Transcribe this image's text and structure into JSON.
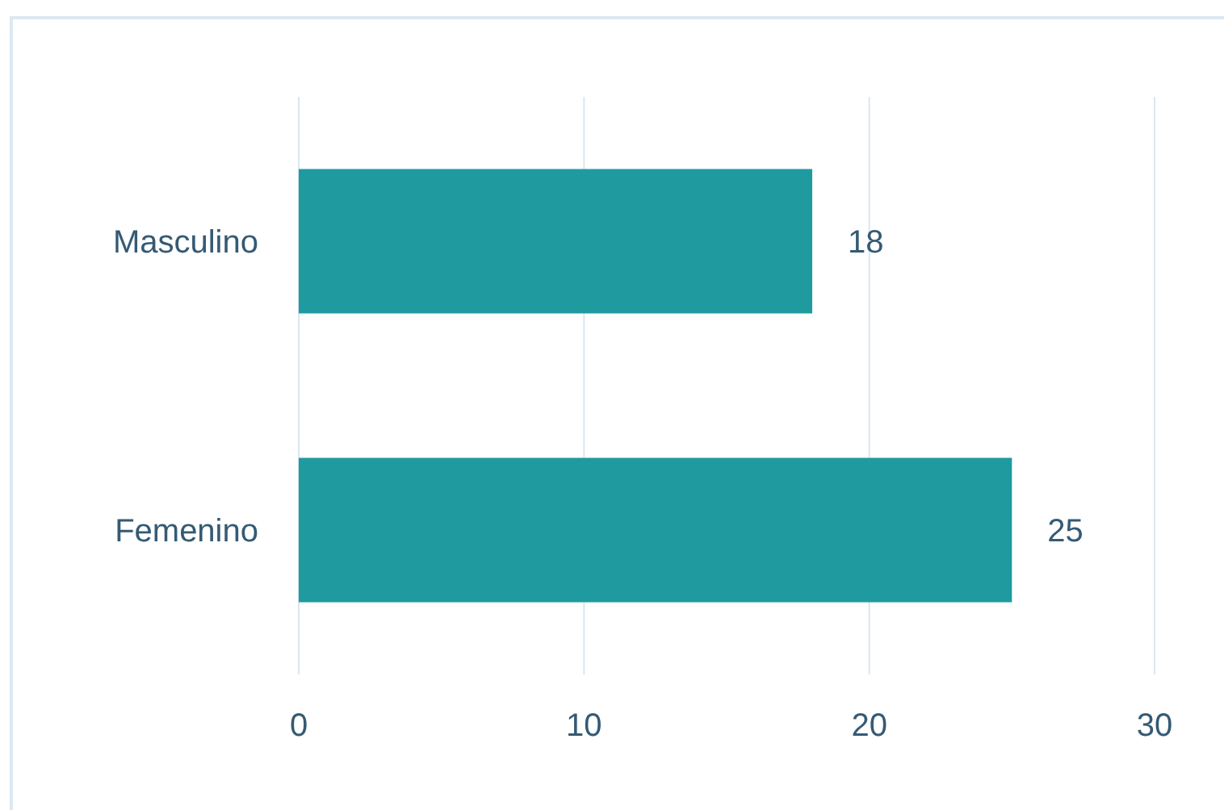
{
  "chart_data": {
    "type": "bar",
    "orientation": "horizontal",
    "categories": [
      "Masculino",
      "Femenino"
    ],
    "values": [
      18,
      25
    ],
    "color": "#1f9ba0",
    "xlim": [
      0,
      30
    ],
    "xticks": [
      0,
      10,
      20,
      30
    ],
    "grid": "x",
    "data_labels": true
  }
}
